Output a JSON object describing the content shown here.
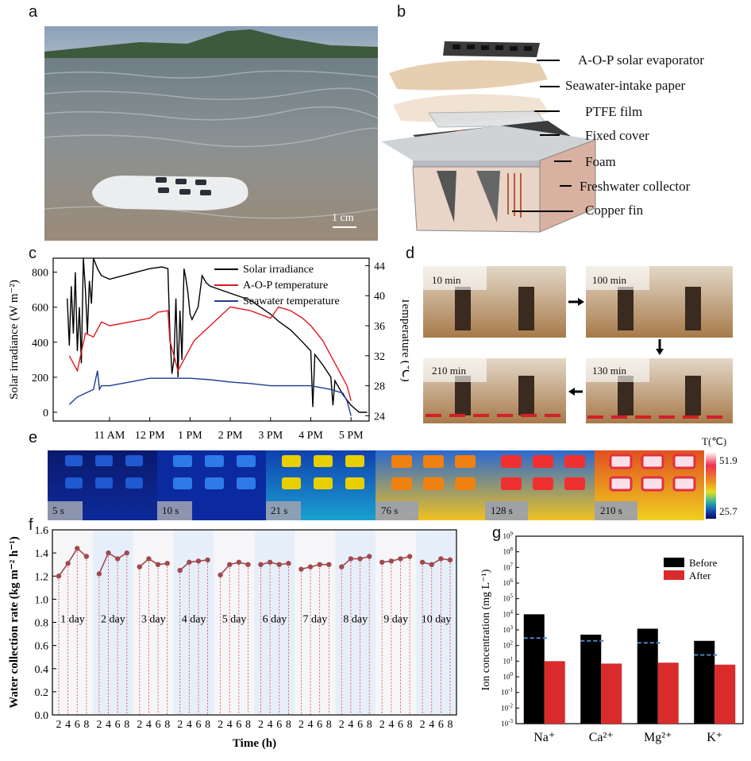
{
  "panel_letters": {
    "a": "a",
    "b": "b",
    "c": "c",
    "d": "d",
    "e": "e",
    "f": "f",
    "g": "g"
  },
  "panel_a": {
    "scale_bar": "1 cm"
  },
  "panel_b": {
    "layers": [
      "A-O-P solar evaporator",
      "Seawater-intake paper",
      "PTFE film",
      "Fixed cover",
      "Foam",
      "Freshwater collector",
      "Copper fin"
    ]
  },
  "panel_d": {
    "times": [
      "10 min",
      "100 min",
      "210 min",
      "130 min"
    ]
  },
  "panel_e": {
    "times": [
      "5 s",
      "10 s",
      "21 s",
      "76 s",
      "128 s",
      "210 s"
    ],
    "colorbar_title": "T(℃)",
    "colorbar_max": "51.9",
    "colorbar_min": "25.7"
  },
  "colors": {
    "black": "#000000",
    "red": "#e0191c",
    "blue": "#1f3a93",
    "f_line": "#a0494e",
    "g_after": "#d92b2b",
    "g_dash": "#4a86c8"
  },
  "chart_data": [
    {
      "panel": "c",
      "type": "line",
      "xlabel": "",
      "ylabel": "Solar irradiance (W m⁻²)",
      "y2label": "Temperature (℃)",
      "x_ticks": [
        "11 AM",
        "12 PM",
        "1 PM",
        "2 PM",
        "3 PM",
        "4 PM",
        "5 PM"
      ],
      "x_tick_hours": [
        11,
        12,
        13,
        14,
        15,
        16,
        17
      ],
      "xlim": [
        9.6,
        17.45
      ],
      "ylim": [
        -50,
        880
      ],
      "y_ticks": [
        0,
        200,
        400,
        600,
        800
      ],
      "y2lim": [
        23.3,
        45
      ],
      "y2_ticks": [
        24,
        28,
        32,
        36,
        40,
        44
      ],
      "legend": [
        "Solar irradiance",
        "A-O-P temperature",
        "Seawater temperature"
      ],
      "series": [
        {
          "name": "Solar irradiance",
          "axis": "left",
          "x": [
            9.95,
            10.0,
            10.05,
            10.1,
            10.15,
            10.2,
            10.25,
            10.3,
            10.35,
            10.4,
            10.45,
            10.5,
            10.55,
            10.6,
            10.7,
            10.8,
            11.0,
            11.5,
            12.0,
            12.3,
            12.45,
            12.5,
            12.55,
            12.6,
            12.65,
            12.7,
            12.75,
            12.8,
            12.85,
            12.9,
            12.95,
            13.0,
            13.05,
            13.2,
            13.3,
            13.4,
            13.5,
            14.0,
            14.5,
            15.0,
            15.2,
            15.5,
            15.8,
            16.0,
            16.05,
            16.1,
            16.3,
            16.5,
            16.55,
            16.6,
            16.8,
            17.0,
            17.1,
            17.2,
            17.4
          ],
          "y": [
            650,
            380,
            720,
            450,
            800,
            350,
            600,
            280,
            880,
            700,
            450,
            750,
            620,
            880,
            820,
            780,
            760,
            790,
            820,
            830,
            820,
            450,
            220,
            300,
            650,
            200,
            580,
            300,
            820,
            760,
            680,
            560,
            530,
            600,
            780,
            740,
            720,
            680,
            640,
            560,
            520,
            470,
            400,
            350,
            30,
            330,
            270,
            200,
            40,
            180,
            100,
            40,
            20,
            0,
            0
          ]
        },
        {
          "name": "A-O-P temperature",
          "axis": "right",
          "x": [
            10.0,
            10.2,
            10.4,
            10.6,
            10.8,
            11.0,
            11.5,
            12.0,
            12.2,
            12.45,
            12.5,
            12.7,
            12.9,
            13.1,
            13.5,
            14.0,
            14.5,
            15.0,
            15.2,
            15.5,
            15.8,
            16.0,
            16.3,
            16.5,
            16.7,
            16.9,
            17.0
          ],
          "y": [
            32,
            30,
            35,
            34.5,
            36.5,
            36,
            36.5,
            37,
            37.8,
            38,
            34,
            30,
            32,
            34,
            36,
            38.5,
            38,
            37,
            38.5,
            38,
            37,
            36,
            34,
            32,
            30,
            28,
            26
          ]
        },
        {
          "name": "Seawater temperature",
          "axis": "right",
          "x": [
            10.0,
            10.2,
            10.4,
            10.6,
            10.7,
            10.75,
            10.8,
            11.0,
            11.5,
            12.0,
            12.5,
            13.0,
            13.5,
            14.0,
            14.5,
            15.0,
            15.5,
            16.0,
            16.5,
            16.8,
            16.9,
            17.0
          ],
          "y": [
            25.5,
            26.5,
            27,
            27.5,
            30,
            27.5,
            28,
            28,
            28.5,
            29,
            29,
            29,
            28.8,
            28.5,
            28.3,
            28,
            28,
            28,
            27.5,
            27,
            26,
            24
          ]
        }
      ]
    },
    {
      "panel": "f",
      "type": "line",
      "xlabel": "Time (h)",
      "ylabel": "Water collection rate (kg m⁻² h⁻¹)",
      "ylim": [
        0.0,
        1.6
      ],
      "y_ticks": [
        0.0,
        0.2,
        0.4,
        0.6,
        0.8,
        1.0,
        1.2,
        1.4,
        1.6
      ],
      "x_ticks": [
        "2",
        "4",
        "6",
        "8"
      ],
      "series": [
        {
          "name": "1 day",
          "values": [
            1.2,
            1.31,
            1.44,
            1.37
          ]
        },
        {
          "name": "2 day",
          "values": [
            1.22,
            1.4,
            1.35,
            1.4
          ]
        },
        {
          "name": "3 day",
          "values": [
            1.28,
            1.35,
            1.3,
            1.31
          ]
        },
        {
          "name": "4 day",
          "values": [
            1.25,
            1.32,
            1.33,
            1.34
          ]
        },
        {
          "name": "5 day",
          "values": [
            1.21,
            1.3,
            1.32,
            1.3
          ]
        },
        {
          "name": "6 day",
          "values": [
            1.3,
            1.32,
            1.3,
            1.31
          ]
        },
        {
          "name": "7 day",
          "values": [
            1.26,
            1.28,
            1.3,
            1.3
          ]
        },
        {
          "name": "8 day",
          "values": [
            1.28,
            1.35,
            1.35,
            1.37
          ]
        },
        {
          "name": "9 day",
          "values": [
            1.32,
            1.33,
            1.35,
            1.37
          ]
        },
        {
          "name": "10 day",
          "values": [
            1.32,
            1.3,
            1.35,
            1.34
          ]
        }
      ]
    },
    {
      "panel": "g",
      "type": "bar",
      "ylabel": "Ion concentration (mg L⁻¹)",
      "yscale": "log",
      "ylim_exp": [
        -3,
        9
      ],
      "categories": [
        "Na⁺",
        "Ca²⁺",
        "Mg²⁺",
        "K⁺"
      ],
      "legend": [
        "Before",
        "After"
      ],
      "series": [
        {
          "name": "Before",
          "values": [
            10000,
            500,
            1200,
            200
          ]
        },
        {
          "name": "After",
          "values": [
            10,
            7,
            8,
            6
          ]
        }
      ],
      "reference_lines": [
        300,
        200,
        150,
        25
      ]
    }
  ]
}
